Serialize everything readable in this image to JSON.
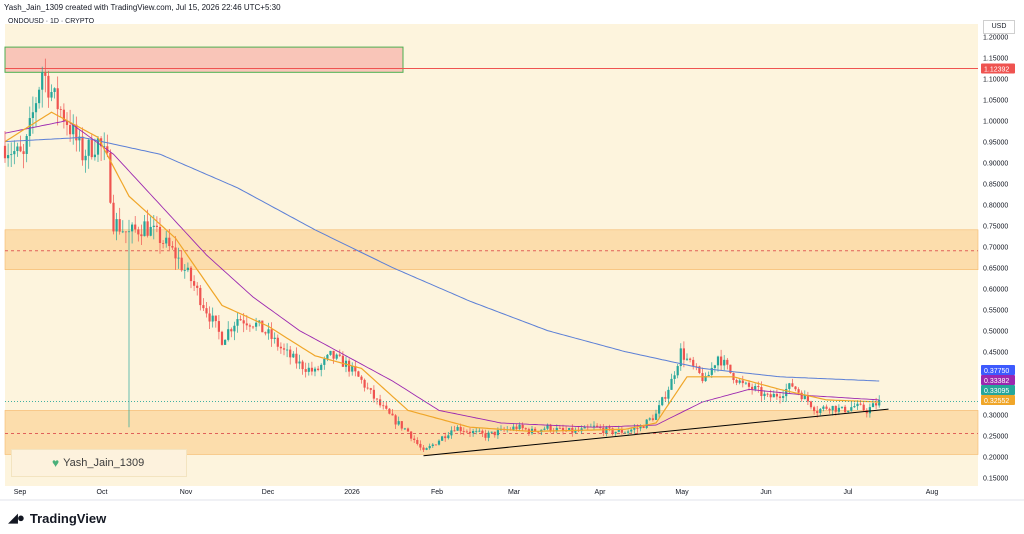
{
  "header": {
    "credit": "Yash_Jain_1309 created with TradingView.com, Jul 15, 2026 22:46 UTC+5:30",
    "symbol": "ONDOUSD · 1D · CRYPTO",
    "currency": "USD"
  },
  "watermark": {
    "text": "Yash_Jain_1309",
    "icon": "heart-icon"
  },
  "brand": {
    "name": "TradingView",
    "icon": "tradingview-logo-icon"
  },
  "colors": {
    "background": "#fdf4dd",
    "up": "#26a69a",
    "down": "#ef5350",
    "zone": "#fbd7a0",
    "supply_zone": "#f9c5b8",
    "ema_fast": "#f0a629",
    "ma_mid": "#9c27b0",
    "ma_slow": "#5b7fd6",
    "trendline": "#000000"
  },
  "chart_data": {
    "type": "candlestick",
    "ylim": [
      0.13,
      1.23
    ],
    "y_ticks": [
      "1.20000",
      "1.15000",
      "1.10000",
      "1.05000",
      "1.00000",
      "0.95000",
      "0.90000",
      "0.85000",
      "0.80000",
      "0.75000",
      "0.70000",
      "0.65000",
      "0.60000",
      "0.55000",
      "0.50000",
      "0.45000",
      "0.40000",
      "0.35000",
      "0.30000",
      "0.25000",
      "0.20000",
      "0.15000"
    ],
    "x_ticks": [
      "Sep",
      "Oct",
      "Nov",
      "Dec",
      "2026",
      "Feb",
      "Mar",
      "Apr",
      "May",
      "Jun",
      "Jul",
      "Aug"
    ],
    "price_labels": [
      {
        "value": "1.12392",
        "color": "#ef5350"
      },
      {
        "value": "0.37750",
        "color": "#3d5afe"
      },
      {
        "value": "0.33382",
        "color": "#9c27b0"
      },
      {
        "value": "0.33095",
        "color": "#26a69a"
      },
      {
        "value": "0.32552",
        "color": "#f0a629"
      }
    ],
    "price_path": [
      [
        0,
        0.94
      ],
      [
        6,
        0.91
      ],
      [
        10,
        1.05
      ],
      [
        12,
        1.12
      ],
      [
        16,
        1.05
      ],
      [
        20,
        1.0
      ],
      [
        25,
        0.92
      ],
      [
        30,
        0.95
      ],
      [
        33,
        0.9
      ],
      [
        35,
        0.76
      ],
      [
        40,
        0.73
      ],
      [
        45,
        0.75
      ],
      [
        50,
        0.72
      ],
      [
        55,
        0.68
      ],
      [
        60,
        0.62
      ],
      [
        65,
        0.55
      ],
      [
        70,
        0.48
      ],
      [
        75,
        0.53
      ],
      [
        80,
        0.52
      ],
      [
        85,
        0.49
      ],
      [
        90,
        0.45
      ],
      [
        95,
        0.42
      ],
      [
        100,
        0.4
      ],
      [
        105,
        0.44
      ],
      [
        110,
        0.42
      ],
      [
        115,
        0.38
      ],
      [
        120,
        0.33
      ],
      [
        125,
        0.29
      ],
      [
        130,
        0.26
      ],
      [
        135,
        0.21
      ],
      [
        140,
        0.24
      ],
      [
        145,
        0.27
      ],
      [
        150,
        0.26
      ],
      [
        155,
        0.25
      ],
      [
        160,
        0.26
      ],
      [
        165,
        0.27
      ],
      [
        170,
        0.26
      ],
      [
        175,
        0.27
      ],
      [
        180,
        0.26
      ],
      [
        185,
        0.26
      ],
      [
        190,
        0.27
      ],
      [
        195,
        0.26
      ],
      [
        200,
        0.26
      ],
      [
        205,
        0.27
      ],
      [
        210,
        0.3
      ],
      [
        215,
        0.38
      ],
      [
        218,
        0.45
      ],
      [
        222,
        0.41
      ],
      [
        226,
        0.38
      ],
      [
        230,
        0.44
      ],
      [
        234,
        0.4
      ],
      [
        238,
        0.37
      ],
      [
        242,
        0.36
      ],
      [
        246,
        0.34
      ],
      [
        250,
        0.35
      ],
      [
        254,
        0.37
      ],
      [
        258,
        0.34
      ],
      [
        262,
        0.31
      ],
      [
        266,
        0.32
      ],
      [
        270,
        0.31
      ],
      [
        274,
        0.32
      ],
      [
        278,
        0.31
      ],
      [
        282,
        0.33
      ]
    ],
    "supply_zone": [
      1.115,
      1.175
    ],
    "resistance_line": 1.12392,
    "zones": [
      [
        0.645,
        0.74
      ],
      [
        0.205,
        0.31
      ]
    ],
    "dashed_levels": [
      0.69,
      0.255
    ],
    "trendline": {
      "from": [
        135,
        0.202
      ],
      "to": [
        285,
        0.313
      ]
    },
    "ema_fast": [
      [
        0,
        0.95
      ],
      [
        15,
        1.02
      ],
      [
        30,
        0.96
      ],
      [
        40,
        0.82
      ],
      [
        55,
        0.72
      ],
      [
        70,
        0.56
      ],
      [
        85,
        0.51
      ],
      [
        100,
        0.44
      ],
      [
        115,
        0.41
      ],
      [
        130,
        0.31
      ],
      [
        150,
        0.27
      ],
      [
        170,
        0.26
      ],
      [
        200,
        0.265
      ],
      [
        210,
        0.28
      ],
      [
        220,
        0.39
      ],
      [
        235,
        0.39
      ],
      [
        250,
        0.36
      ],
      [
        265,
        0.335
      ],
      [
        282,
        0.33
      ]
    ],
    "ma_mid": [
      [
        0,
        0.97
      ],
      [
        20,
        1.0
      ],
      [
        35,
        0.92
      ],
      [
        50,
        0.8
      ],
      [
        65,
        0.68
      ],
      [
        80,
        0.58
      ],
      [
        95,
        0.5
      ],
      [
        110,
        0.44
      ],
      [
        125,
        0.38
      ],
      [
        140,
        0.31
      ],
      [
        160,
        0.28
      ],
      [
        190,
        0.27
      ],
      [
        210,
        0.275
      ],
      [
        225,
        0.33
      ],
      [
        240,
        0.36
      ],
      [
        260,
        0.345
      ],
      [
        282,
        0.335
      ]
    ],
    "ma_slow": [
      [
        0,
        0.95
      ],
      [
        25,
        0.96
      ],
      [
        50,
        0.92
      ],
      [
        75,
        0.84
      ],
      [
        100,
        0.74
      ],
      [
        125,
        0.65
      ],
      [
        150,
        0.57
      ],
      [
        175,
        0.5
      ],
      [
        200,
        0.45
      ],
      [
        225,
        0.41
      ],
      [
        250,
        0.39
      ],
      [
        282,
        0.38
      ]
    ]
  }
}
